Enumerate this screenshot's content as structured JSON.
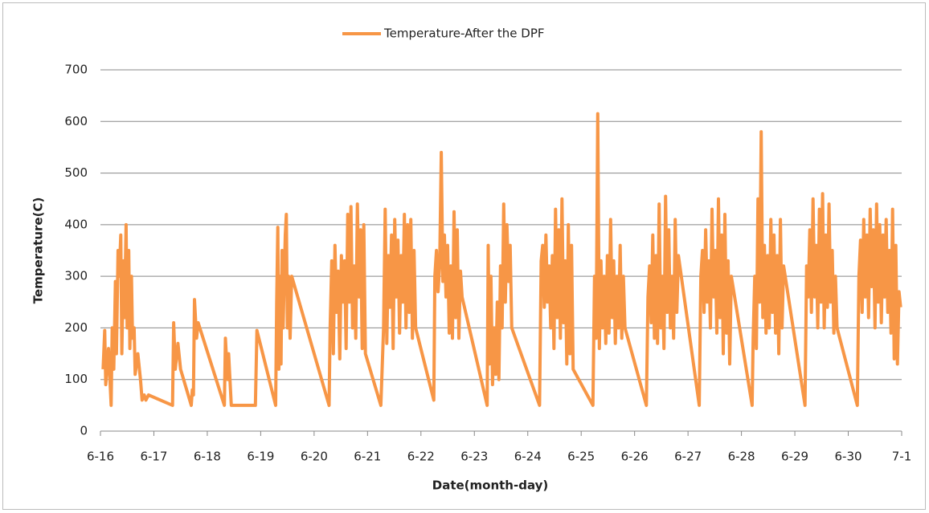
{
  "chart_data": {
    "type": "line",
    "xlabel": "Date(month-day)",
    "ylabel": "Temperature(C)",
    "grid": true,
    "legend": "top",
    "xlim": [
      16,
      31
    ],
    "ylim": [
      0,
      700
    ],
    "yticks": [
      0,
      100,
      200,
      300,
      400,
      500,
      600,
      700
    ],
    "xticks": [
      {
        "value": 16,
        "label": "6-16"
      },
      {
        "value": 17,
        "label": "6-17"
      },
      {
        "value": 18,
        "label": "6-18"
      },
      {
        "value": 19,
        "label": "6-19"
      },
      {
        "value": 20,
        "label": "6-20"
      },
      {
        "value": 21,
        "label": "6-21"
      },
      {
        "value": 22,
        "label": "6-22"
      },
      {
        "value": 23,
        "label": "6-23"
      },
      {
        "value": 24,
        "label": "6-24"
      },
      {
        "value": 25,
        "label": "6-25"
      },
      {
        "value": 26,
        "label": "6-26"
      },
      {
        "value": 27,
        "label": "6-27"
      },
      {
        "value": 28,
        "label": "6-28"
      },
      {
        "value": 29,
        "label": "6-29"
      },
      {
        "value": 30,
        "label": "6-30"
      },
      {
        "value": 31,
        "label": "7-1"
      }
    ],
    "series": [
      {
        "name": "Temperature-After the DPF",
        "color": "#f79646",
        "x": [
          16.05,
          16.08,
          16.1,
          16.15,
          16.2,
          16.22,
          16.25,
          16.28,
          16.3,
          16.33,
          16.35,
          16.38,
          16.4,
          16.43,
          16.45,
          16.48,
          16.5,
          16.53,
          16.55,
          16.58,
          16.6,
          16.63,
          16.65,
          16.7,
          16.75,
          16.78,
          16.82,
          16.85,
          16.9,
          17.35,
          17.37,
          17.4,
          17.45,
          17.5,
          17.7,
          17.72,
          17.74,
          17.76,
          17.8,
          17.83,
          18.32,
          18.34,
          18.38,
          18.4,
          18.45,
          18.6,
          18.9,
          18.93,
          19.28,
          19.3,
          19.32,
          19.34,
          19.36,
          19.38,
          19.4,
          19.42,
          19.44,
          19.46,
          19.48,
          19.5,
          19.52,
          19.55,
          19.58,
          20.28,
          20.3,
          20.33,
          20.36,
          20.39,
          20.42,
          20.45,
          20.48,
          20.51,
          20.54,
          20.57,
          20.6,
          20.63,
          20.66,
          20.69,
          20.72,
          20.75,
          20.78,
          20.81,
          20.84,
          20.87,
          20.9,
          20.93,
          20.96,
          21.25,
          21.3,
          21.33,
          21.36,
          21.39,
          21.42,
          21.45,
          21.48,
          21.51,
          21.54,
          21.57,
          21.6,
          21.63,
          21.66,
          21.69,
          21.72,
          21.75,
          21.78,
          21.81,
          21.84,
          21.87,
          21.9,
          22.24,
          22.26,
          22.29,
          22.32,
          22.35,
          22.38,
          22.41,
          22.44,
          22.47,
          22.5,
          22.53,
          22.56,
          22.59,
          22.62,
          22.65,
          22.68,
          22.71,
          22.74,
          22.77,
          23.24,
          23.26,
          23.28,
          23.31,
          23.34,
          23.37,
          23.4,
          23.43,
          23.46,
          23.49,
          23.52,
          23.55,
          23.58,
          23.61,
          23.64,
          23.67,
          23.7,
          24.22,
          24.25,
          24.28,
          24.31,
          24.34,
          24.37,
          24.4,
          24.43,
          24.46,
          24.49,
          24.52,
          24.55,
          24.58,
          24.61,
          24.64,
          24.67,
          24.7,
          24.73,
          24.76,
          24.79,
          24.82,
          24.85,
          25.22,
          25.25,
          25.28,
          25.31,
          25.34,
          25.37,
          25.4,
          25.43,
          25.46,
          25.49,
          25.52,
          25.55,
          25.58,
          25.61,
          25.64,
          25.67,
          25.7,
          25.73,
          25.76,
          25.79,
          25.82,
          26.22,
          26.25,
          26.28,
          26.31,
          26.34,
          26.37,
          26.4,
          26.43,
          26.46,
          26.49,
          26.52,
          26.55,
          26.58,
          26.61,
          26.64,
          26.67,
          26.7,
          26.73,
          26.76,
          26.79,
          26.82,
          27.21,
          27.24,
          27.27,
          27.3,
          27.33,
          27.36,
          27.39,
          27.42,
          27.45,
          27.48,
          27.51,
          27.54,
          27.57,
          27.6,
          27.63,
          27.66,
          27.69,
          27.72,
          27.75,
          27.78,
          27.81,
          28.2,
          28.22,
          28.25,
          28.28,
          28.31,
          28.34,
          28.37,
          28.4,
          28.43,
          28.46,
          28.49,
          28.52,
          28.55,
          28.58,
          28.61,
          28.64,
          28.67,
          28.7,
          28.73,
          28.76,
          28.79,
          29.19,
          29.22,
          29.25,
          29.28,
          29.31,
          29.34,
          29.37,
          29.4,
          29.43,
          29.46,
          29.49,
          29.52,
          29.55,
          29.58,
          29.61,
          29.64,
          29.67,
          29.7,
          29.73,
          29.76,
          29.79,
          30.17,
          30.2,
          30.23,
          30.26,
          30.29,
          30.32,
          30.35,
          30.38,
          30.41,
          30.44,
          30.47,
          30.5,
          30.53,
          30.56,
          30.59,
          30.62,
          30.65,
          30.68,
          30.71,
          30.74,
          30.77,
          30.8,
          30.83,
          30.86,
          30.89,
          30.92,
          30.95,
          30.98
        ],
        "values": [
          120,
          195,
          90,
          160,
          50,
          200,
          120,
          290,
          150,
          350,
          300,
          380,
          150,
          330,
          220,
          400,
          200,
          350,
          160,
          300,
          180,
          200,
          110,
          150,
          100,
          60,
          70,
          60,
          70,
          50,
          210,
          120,
          170,
          120,
          50,
          80,
          70,
          255,
          180,
          210,
          50,
          180,
          100,
          150,
          50,
          50,
          50,
          195,
          50,
          250,
          395,
          120,
          300,
          130,
          350,
          200,
          290,
          380,
          420,
          200,
          300,
          180,
          300,
          50,
          200,
          330,
          150,
          360,
          230,
          310,
          140,
          340,
          250,
          330,
          160,
          420,
          250,
          435,
          200,
          320,
          180,
          440,
          260,
          390,
          160,
          400,
          150,
          50,
          200,
          430,
          170,
          340,
          240,
          380,
          160,
          410,
          260,
          370,
          190,
          340,
          250,
          420,
          200,
          400,
          230,
          410,
          180,
          350,
          200,
          60,
          300,
          350,
          270,
          320,
          540,
          290,
          380,
          260,
          360,
          190,
          320,
          180,
          425,
          220,
          390,
          180,
          310,
          260,
          50,
          360,
          130,
          300,
          90,
          200,
          110,
          250,
          100,
          320,
          200,
          440,
          250,
          400,
          290,
          360,
          200,
          50,
          330,
          360,
          240,
          380,
          250,
          320,
          200,
          340,
          160,
          430,
          220,
          390,
          180,
          450,
          210,
          330,
          130,
          400,
          150,
          360,
          120,
          50,
          300,
          180,
          615,
          160,
          330,
          200,
          300,
          170,
          340,
          190,
          410,
          220,
          330,
          170,
          300,
          200,
          360,
          180,
          300,
          200,
          50,
          260,
          320,
          210,
          380,
          180,
          340,
          170,
          440,
          200,
          300,
          160,
          455,
          230,
          390,
          200,
          300,
          180,
          410,
          230,
          340,
          50,
          300,
          350,
          230,
          390,
          250,
          330,
          200,
          430,
          260,
          350,
          190,
          450,
          220,
          380,
          150,
          420,
          190,
          330,
          130,
          300,
          50,
          180,
          300,
          160,
          450,
          250,
          580,
          220,
          360,
          190,
          340,
          200,
          410,
          230,
          380,
          190,
          340,
          150,
          410,
          200,
          320,
          50,
          320,
          260,
          390,
          230,
          450,
          260,
          360,
          200,
          430,
          250,
          460,
          200,
          380,
          240,
          440,
          250,
          350,
          190,
          300,
          200,
          50,
          300,
          370,
          230,
          410,
          260,
          380,
          220,
          430,
          280,
          390,
          200,
          440,
          250,
          400,
          210,
          380,
          260,
          410,
          230,
          350,
          190,
          430,
          140,
          360,
          130,
          270,
          240
        ]
      }
    ]
  }
}
